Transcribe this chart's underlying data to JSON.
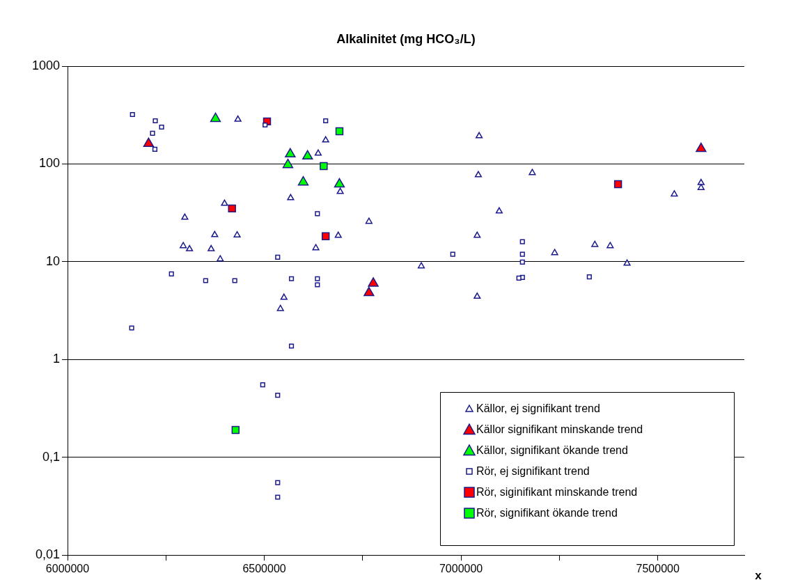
{
  "chart_data": {
    "type": "scatter",
    "title": "Alkalinitet (mg HCO₃/L)",
    "xlabel": "x",
    "xlim": [
      6000000,
      7720000
    ],
    "xticks": [
      6000000,
      {
        "value": 6250000,
        "label": null
      },
      6500000,
      {
        "value": 6750000,
        "label": null
      },
      7000000,
      {
        "value": 7250000,
        "label": null
      },
      7500000
    ],
    "ylim": [
      0.01,
      1000
    ],
    "yticks": [
      {
        "value": 0.01,
        "label": "0,01"
      },
      {
        "value": 0.1,
        "label": "0,1"
      },
      1,
      10,
      100,
      1000
    ],
    "log": "y",
    "grid": "y",
    "legend": "bottom right",
    "series": [
      {
        "name": "Källor, ej signifikant trend",
        "marker": "triangle",
        "color": "#ffffff",
        "x": [
          6433000,
          6567000,
          6399000,
          6298000,
          6374000,
          6431000,
          6294000,
          6310000,
          6365000,
          6388000,
          6550000,
          6541000,
          6656000,
          6637000,
          6693000,
          6766000,
          6688000,
          6631000,
          7041000,
          7044000,
          7046000,
          7097000,
          6899000,
          7041000,
          7181000,
          7610000,
          7610000,
          7542000,
          7238000,
          7340000,
          7379000,
          7422000
        ],
        "values": [
          285,
          44.8,
          39.3,
          28.3,
          18.8,
          18.7,
          14.5,
          13.5,
          13.5,
          10.6,
          4.3,
          3.3,
          175,
          128,
          52,
          25.7,
          18.5,
          13.8,
          18.5,
          77,
          193,
          32.8,
          9.0,
          4.4,
          81,
          64,
          57,
          49,
          12.3,
          14.9,
          14.5,
          9.6
        ]
      },
      {
        "name": "Källor signifikant minskande trend",
        "marker": "triangle",
        "color": "#ff0000",
        "x": [
          6206000,
          6777000,
          6766000,
          7610000
        ],
        "values": [
          161,
          6.0,
          4.8,
          143
        ]
      },
      {
        "name": "Källor, signifikant ökande trend",
        "marker": "triangle",
        "color": "#00ff00",
        "x": [
          6376000,
          6566000,
          6560000,
          6610000,
          6599000,
          6691000
        ],
        "values": [
          290,
          126,
          98,
          120,
          65,
          62
        ]
      },
      {
        "name": "Rör, ej signifikant trend",
        "marker": "square",
        "color": "#ffffff",
        "x": [
          6165000,
          6223000,
          6239000,
          6216000,
          6222000,
          6502000,
          6534000,
          6264000,
          6351000,
          6425000,
          6569000,
          6656000,
          6635000,
          6979000,
          6635000,
          6635000,
          7156000,
          7156000,
          7156000,
          7156000,
          7147000,
          7326000,
          6163000,
          6569000,
          6496000,
          6534000,
          6534000,
          6534000
        ],
        "values": [
          320,
          276,
          238,
          206,
          141,
          250,
          11.1,
          7.5,
          6.4,
          6.4,
          6.7,
          276,
          31,
          11.9,
          6.7,
          5.8,
          16,
          11.9,
          9.9,
          6.9,
          6.8,
          7.0,
          2.1,
          1.37,
          0.55,
          0.43,
          0.055,
          0.039
        ]
      },
      {
        "name": "Rör, siginifikant minskande trend",
        "marker": "square",
        "color": "#ff0000",
        "x": [
          6507000,
          6418000,
          6656000,
          7399000
        ],
        "values": [
          272,
          35,
          18.2,
          62
        ]
      },
      {
        "name": "Rör, signifikant ökande trend",
        "marker": "square",
        "color": "#00ff00",
        "x": [
          6691000,
          6651000,
          6427000
        ],
        "values": [
          216,
          95,
          0.19
        ]
      }
    ]
  }
}
